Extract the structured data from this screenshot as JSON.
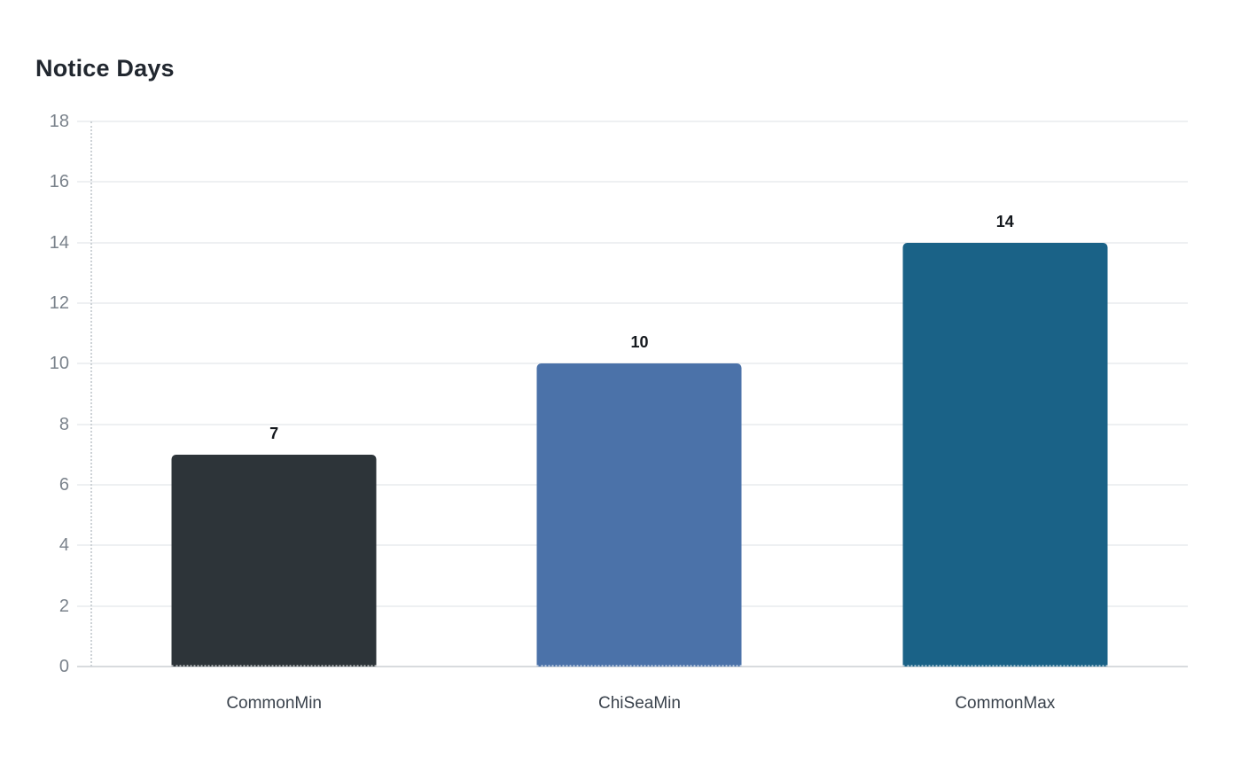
{
  "chart_data": {
    "type": "bar",
    "title": "Notice Days",
    "categories": [
      "CommonMin",
      "ChiSeaMin",
      "CommonMax"
    ],
    "values": [
      7,
      10,
      14
    ],
    "value_labels": [
      "7",
      "10",
      "14"
    ],
    "bar_colors": [
      "#2d3439",
      "#4b72a9",
      "#1a6287"
    ],
    "xlabel": "",
    "ylabel": "",
    "ylim": [
      0,
      18
    ],
    "ytick_step": 2,
    "yticks": [
      "0",
      "2",
      "4",
      "6",
      "8",
      "10",
      "12",
      "14",
      "16",
      "18"
    ],
    "grid": "horizontal-on",
    "legend": "none",
    "background_color": "#ffffff",
    "axis_label_color": "#7a828b",
    "category_label_color": "#3a424c"
  }
}
